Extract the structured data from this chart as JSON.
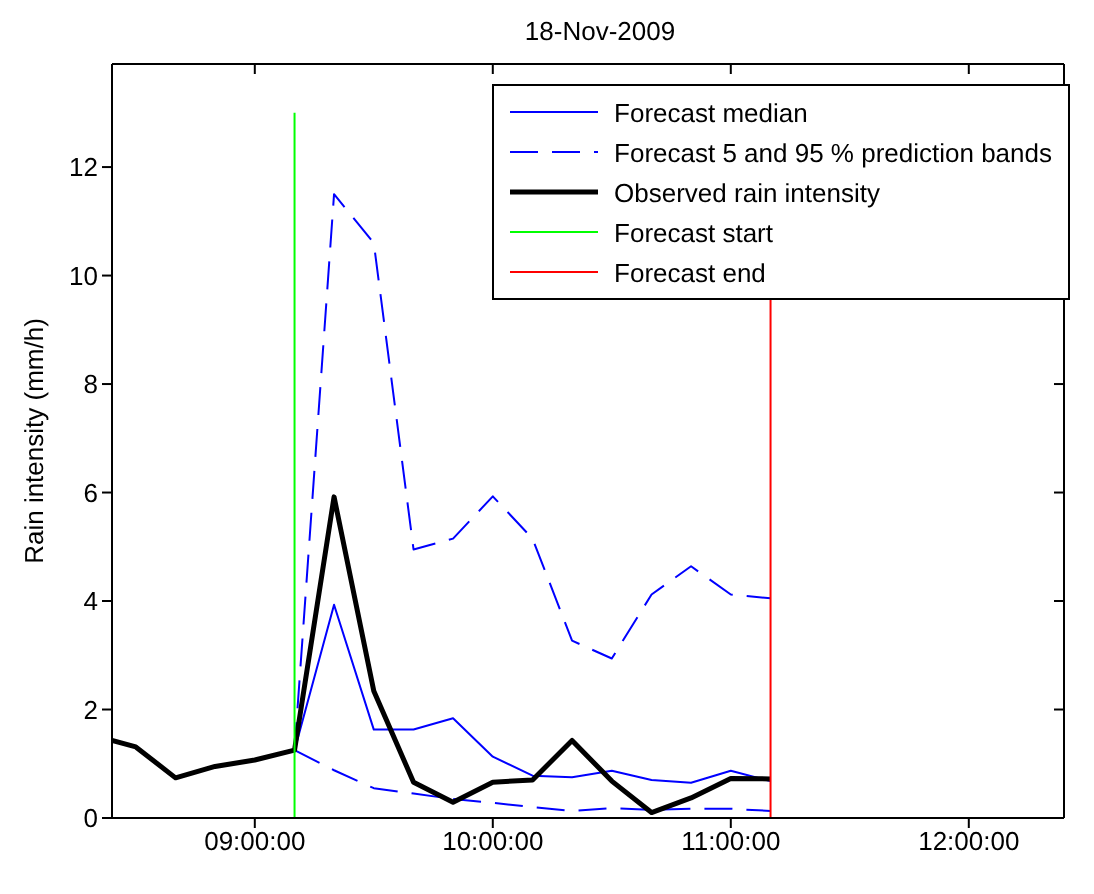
{
  "chart_data": {
    "type": "line",
    "title": "18-Nov-2009",
    "ylabel": "Rain intensity (mm/h)",
    "xlim": [
      8.4,
      12.4
    ],
    "ylim": [
      0,
      13.9
    ],
    "xticks": [
      {
        "value": 9,
        "label": "09:00:00"
      },
      {
        "value": 10,
        "label": "10:00:00"
      },
      {
        "value": 11,
        "label": "11:00:00"
      },
      {
        "value": 12,
        "label": "12:00:00"
      }
    ],
    "yticks": [
      0,
      2,
      4,
      6,
      8,
      10,
      12
    ],
    "legend": "top right",
    "series": [
      {
        "name": "Forecast median",
        "color": "#0000ff",
        "x": [
          9.167,
          9.333,
          9.5,
          9.667,
          9.833,
          10,
          10.167,
          10.333,
          10.5,
          10.667,
          10.833,
          11,
          11.167
        ],
        "values": [
          1.25,
          3.93,
          1.63,
          1.63,
          1.84,
          1.13,
          0.78,
          0.75,
          0.87,
          0.7,
          0.65,
          0.87,
          0.68
        ]
      },
      {
        "name": "Forecast 5 and 95 % prediction bands",
        "color": "#0000ff",
        "line_style": "dashed",
        "x": [
          9.167,
          9.333,
          9.5,
          9.667,
          9.833,
          10,
          10.167,
          10.333,
          10.5,
          10.667,
          10.833,
          11,
          11.167
        ],
        "values": [
          1.25,
          11.5,
          10.6,
          4.95,
          5.15,
          5.93,
          5.15,
          3.27,
          2.94,
          4.12,
          4.64,
          4.12,
          4.05
        ]
      },
      {
        "color": "#0000ff",
        "line_style": "dashed",
        "x": [
          9.167,
          9.333,
          9.5,
          9.667,
          9.833,
          10,
          10.167,
          10.333,
          10.5,
          10.667,
          10.833,
          11,
          11.167
        ],
        "values": [
          1.25,
          0.88,
          0.55,
          0.45,
          0.35,
          0.28,
          0.2,
          0.13,
          0.18,
          0.15,
          0.17,
          0.17,
          0.13
        ]
      },
      {
        "name": "Observed rain intensity",
        "color": "#000000",
        "x": [
          8.4,
          8.5,
          8.667,
          8.833,
          9,
          9.167,
          9.333,
          9.5,
          9.667,
          9.833,
          10,
          10.167,
          10.333,
          10.5,
          10.667,
          10.833,
          11,
          11.167
        ],
        "values": [
          1.43,
          1.31,
          0.74,
          0.95,
          1.07,
          1.25,
          5.92,
          2.34,
          0.66,
          0.29,
          0.66,
          0.7,
          1.43,
          0.68,
          0.1,
          0.37,
          0.73,
          0.72
        ]
      },
      {
        "name": "Forecast start",
        "color": "#00ff00",
        "x": [
          9.167,
          9.167
        ],
        "values": [
          0,
          13
        ]
      },
      {
        "name": "Forecast end",
        "color": "#ff0000",
        "x": [
          11.167,
          11.167
        ],
        "values": [
          0,
          9.6
        ]
      }
    ]
  }
}
